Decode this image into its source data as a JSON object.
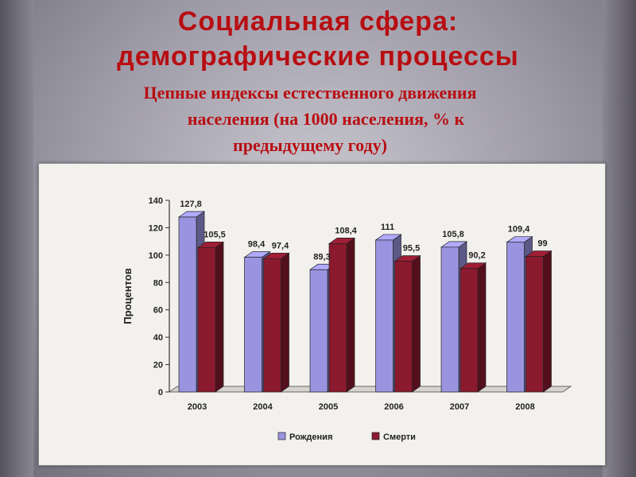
{
  "slide": {
    "title_line1": "Социальная сфера:",
    "title_line2": "демографические процессы",
    "subtitle_line1": "Цепные индексы естественного движения",
    "subtitle_line2": "населения (на 1000 населения, % к",
    "subtitle_line3": "предыдущему году)"
  },
  "chart_data": {
    "type": "bar",
    "categories": [
      "2003",
      "2004",
      "2005",
      "2006",
      "2007",
      "2008"
    ],
    "series": [
      {
        "name": "Рождения",
        "values": [
          127.8,
          98.4,
          89.3,
          111,
          105.8,
          109.4
        ],
        "labels": [
          "127,8",
          "98,4",
          "89,3",
          "111",
          "105,8",
          "109,4"
        ],
        "color": "#9a94e0"
      },
      {
        "name": "Смерти",
        "values": [
          105.5,
          97.4,
          108.4,
          95.5,
          90.2,
          99
        ],
        "labels": [
          "105,5",
          "97,4",
          "108,4",
          "95,5",
          "90,2",
          "99"
        ],
        "color": "#8b1a2f"
      }
    ],
    "ylabel": "Процентов",
    "ylim": [
      0,
      140
    ],
    "yticks": [
      0,
      20,
      40,
      60,
      80,
      100,
      120,
      140
    ],
    "grid": false,
    "legend": "bottom"
  }
}
